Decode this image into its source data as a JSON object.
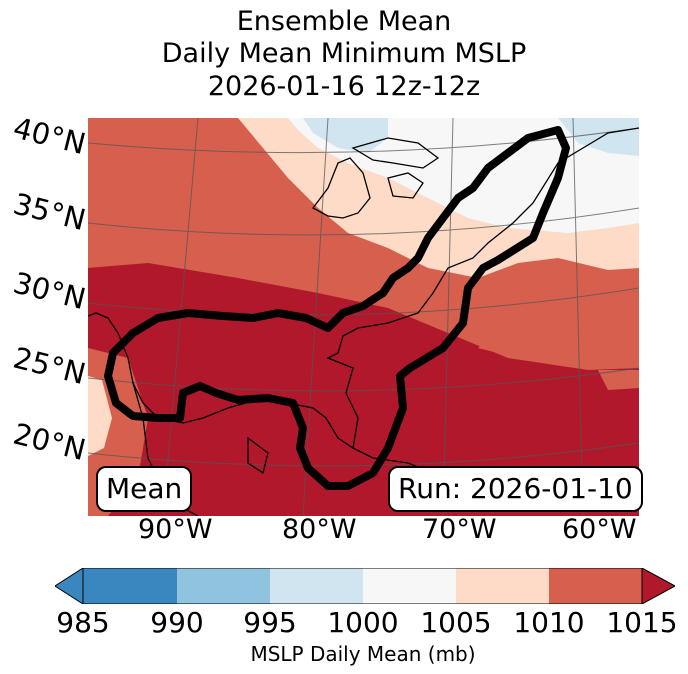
{
  "title": {
    "line1": "Ensemble Mean",
    "line2": "Daily Mean Minimum MSLP",
    "line3": "2026-01-16 12z-12z"
  },
  "map": {
    "lat_labels": [
      "40°N",
      "35°N",
      "30°N",
      "25°N",
      "20°N"
    ],
    "lon_labels": [
      "90°W",
      "80°W",
      "70°W",
      "60°W"
    ],
    "mean_box": "Mean",
    "run_box": "Run: 2026-01-10",
    "colors": {
      "c985_990": "#3a87c0",
      "c990_995": "#8fc3de",
      "c995_1000": "#d1e5f0",
      "c1000_1005": "#f7f7f7",
      "c1005_1010": "#fddbc7",
      "c1010_1015": "#d6604d",
      "c1015_up": "#b2182b"
    }
  },
  "colorbar": {
    "ticks": [
      "985",
      "990",
      "995",
      "1000",
      "1005",
      "1010",
      "1015"
    ],
    "label": "MSLP Daily Mean (mb)"
  }
}
